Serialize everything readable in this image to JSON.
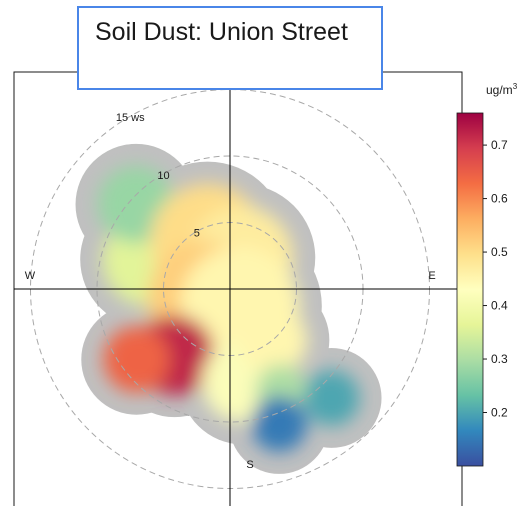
{
  "chart_data": {
    "type": "heatmap",
    "title": "Soil Dust: Union Street",
    "unit_label": "ug/m",
    "unit_superscript": "3",
    "radial_label": "ws",
    "radial_ticks": [
      5,
      10,
      15
    ],
    "directions": [
      "W",
      "E",
      "S"
    ],
    "colorbar_ticks": [
      0.2,
      0.3,
      0.4,
      0.5,
      0.6,
      0.7
    ],
    "colorbar_range": [
      0.1,
      0.76
    ],
    "colorbar_stops": [
      "#3a4fa0",
      "#3288bd",
      "#66c2a5",
      "#abdda4",
      "#e6f598",
      "#ffffbf",
      "#fee08b",
      "#fdae61",
      "#f46d43",
      "#d53e4f",
      "#9e0142"
    ],
    "no_data_color": "#c0c0c0",
    "blobs": [
      {
        "ws": 6.5,
        "dir_deg": 290,
        "r": 3.2,
        "value": 0.36
      },
      {
        "ws": 9.5,
        "dir_deg": 312,
        "r": 2.6,
        "value": 0.28
      },
      {
        "ws": 4.0,
        "dir_deg": 335,
        "r": 4.0,
        "value": 0.5
      },
      {
        "ws": 2.5,
        "dir_deg": 20,
        "r": 3.6,
        "value": 0.47
      },
      {
        "ws": 2.0,
        "dir_deg": 250,
        "r": 4.0,
        "value": 0.52
      },
      {
        "ws": 1.5,
        "dir_deg": 150,
        "r": 4.2,
        "value": 0.45
      },
      {
        "ws": 6.5,
        "dir_deg": 220,
        "r": 2.7,
        "value": 0.72
      },
      {
        "ws": 8.8,
        "dir_deg": 233,
        "r": 2.2,
        "value": 0.64
      },
      {
        "ws": 7.0,
        "dir_deg": 172,
        "r": 2.8,
        "value": 0.42
      },
      {
        "ws": 5.0,
        "dir_deg": 140,
        "r": 2.3,
        "value": 0.45
      },
      {
        "ws": 8.5,
        "dir_deg": 153,
        "r": 1.6,
        "value": 0.3
      },
      {
        "ws": 10.8,
        "dir_deg": 160,
        "r": 1.8,
        "value": 0.15
      },
      {
        "ws": 11.2,
        "dir_deg": 137,
        "r": 1.8,
        "value": 0.2
      }
    ]
  }
}
